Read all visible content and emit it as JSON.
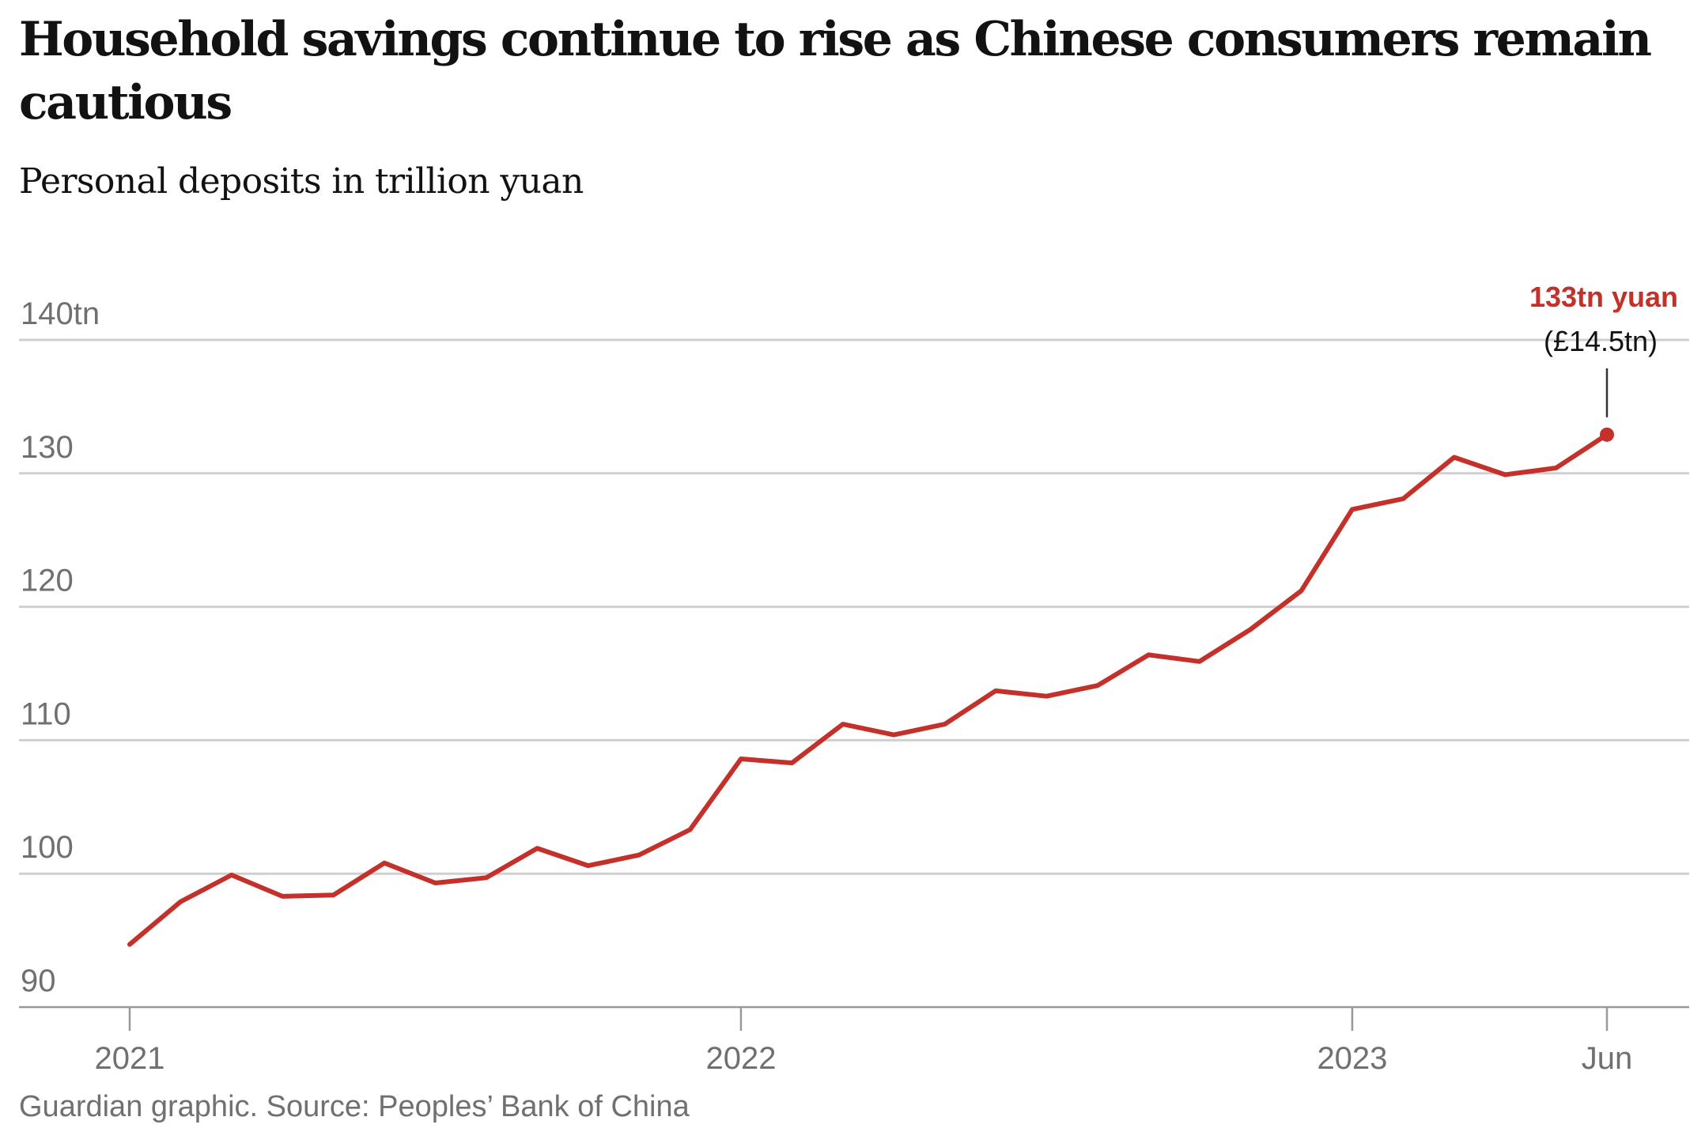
{
  "headline": "Household savings continue to rise as Chinese consumers remain cautious",
  "subtitle": "Personal deposits in trillion yuan",
  "source": "Guardian graphic. Source: Peoples’ Bank of China",
  "colors": {
    "line": "#c4312b",
    "grid": "#cfcfcf",
    "axis_text": "#707070",
    "text": "#121212"
  },
  "chart_data": {
    "type": "line",
    "title": "Household savings continue to rise as Chinese consumers remain cautious",
    "subtitle": "Personal deposits in trillion yuan",
    "x": [
      "2021-01",
      "2021-02",
      "2021-03",
      "2021-04",
      "2021-05",
      "2021-06",
      "2021-07",
      "2021-08",
      "2021-09",
      "2021-10",
      "2021-11",
      "2021-12",
      "2022-01",
      "2022-02",
      "2022-03",
      "2022-04",
      "2022-05",
      "2022-06",
      "2022-07",
      "2022-08",
      "2022-09",
      "2022-10",
      "2022-11",
      "2022-12",
      "2023-01",
      "2023-02",
      "2023-03",
      "2023-04",
      "2023-05",
      "2023-06"
    ],
    "series": [
      {
        "values": [
          94.7,
          97.9,
          99.9,
          98.3,
          98.4,
          100.8,
          99.3,
          99.7,
          101.9,
          100.6,
          101.4,
          103.3,
          108.6,
          108.3,
          111.2,
          110.4,
          111.2,
          113.7,
          113.3,
          114.1,
          116.4,
          115.9,
          118.3,
          121.2,
          127.3,
          128.1,
          131.2,
          129.9,
          130.4,
          132.9
        ]
      }
    ],
    "yticks": [
      90,
      100,
      110,
      120,
      130,
      140
    ],
    "ytick_labels": [
      "90",
      "100",
      "110",
      "120",
      "130",
      "140tn"
    ],
    "xticks": [
      "2021-01",
      "2022-01",
      "2023-01",
      "2023-06"
    ],
    "xtick_labels": [
      "2021",
      "2022",
      "2023",
      "Jun"
    ],
    "ylim": [
      90,
      140
    ],
    "grid": true,
    "annotation": {
      "x": "2023-06",
      "value_label": "133tn yuan",
      "sub_label": "(£14.5tn)"
    }
  }
}
